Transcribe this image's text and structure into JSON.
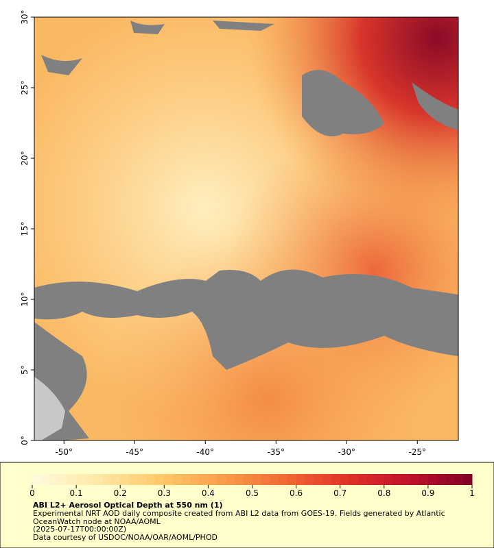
{
  "map": {
    "lat_ticks": [
      {
        "value": 0,
        "label": "0°"
      },
      {
        "value": 5,
        "label": "5°"
      },
      {
        "value": 10,
        "label": "10°"
      },
      {
        "value": 15,
        "label": "15°"
      },
      {
        "value": 20,
        "label": "20°"
      },
      {
        "value": 25,
        "label": "25°"
      },
      {
        "value": 30,
        "label": "30°"
      }
    ],
    "lon_ticks": [
      {
        "value": -50,
        "label": "-50°"
      },
      {
        "value": -45,
        "label": "-45°"
      },
      {
        "value": -40,
        "label": "-40°"
      },
      {
        "value": -35,
        "label": "-35°"
      },
      {
        "value": -30,
        "label": "-30°"
      },
      {
        "value": -25,
        "label": "-25°"
      }
    ],
    "latlim": [
      0,
      30
    ],
    "lonlim": [
      -52.1,
      -22.1
    ]
  },
  "colorbar": {
    "xlim": [
      0,
      1
    ],
    "ticks": [
      0,
      0.1,
      0.2,
      0.3,
      0.4,
      0.5,
      0.6,
      0.7,
      0.8,
      0.9,
      1
    ],
    "colormap": [
      "#fffae0",
      "#ffe9a8",
      "#fdca6a",
      "#fb9f4a",
      "#f26a34",
      "#e03328",
      "#c0122a",
      "#800026"
    ]
  },
  "caption": {
    "title": "ABI L2+ Aerosol Optical Depth at 550 nm (1)",
    "lines": [
      "Experimental NRT AOD daily composite created from ABI L2 data from GOES-19. Fields generated by Atlantic",
      "OceanWatch node at NOAA/AOML",
      "(2025-07-17T00:00:00Z)",
      "Data courtesy of USDOC/NOAA/OAR/AOML/PHOD"
    ]
  }
}
